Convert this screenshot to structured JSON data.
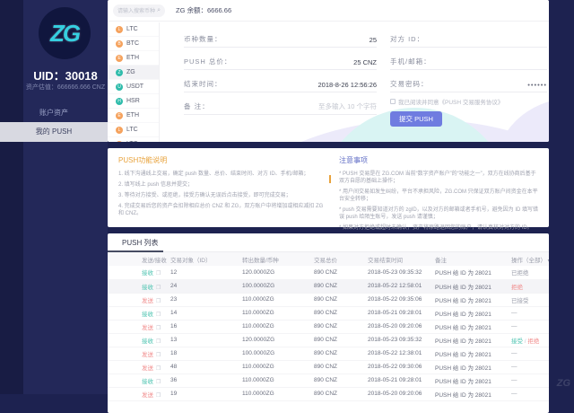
{
  "sidebar": {
    "logo_text": "ZG",
    "uid": "UID：30018",
    "asset": "资产估值：666666.666 CNZ",
    "menu": [
      {
        "key": "account-assets",
        "label": "账户资产",
        "active": false
      },
      {
        "key": "my-push",
        "label": "我的 PUSH",
        "active": true
      }
    ]
  },
  "topbar": {
    "search_placeholder": "请输入搜索币种",
    "search_icon": "⌕",
    "balance": "ZG 余额：6666.66"
  },
  "coins": [
    {
      "symbol": "LTC",
      "color": "orange",
      "active": false
    },
    {
      "symbol": "BTC",
      "color": "orange",
      "active": false
    },
    {
      "symbol": "ETH",
      "color": "orange",
      "active": false
    },
    {
      "symbol": "ZG",
      "color": "teal",
      "active": true
    },
    {
      "symbol": "USDT",
      "color": "teal",
      "active": false
    },
    {
      "symbol": "HSR",
      "color": "teal",
      "active": false
    },
    {
      "symbol": "ETH",
      "color": "orange",
      "active": false
    },
    {
      "symbol": "LTC",
      "color": "orange",
      "active": false
    },
    {
      "symbol": "LTC",
      "color": "orange",
      "active": false
    }
  ],
  "form": {
    "left": [
      {
        "key": "coin-amount",
        "label": "币种数量：",
        "value": "25"
      },
      {
        "key": "push-total",
        "label": "PUSH 总价：",
        "value": "25  CNZ"
      },
      {
        "key": "end-time",
        "label": "结束时间：",
        "value": "2018-8-26 12:56:26"
      },
      {
        "key": "remark",
        "label": "备  注：",
        "placeholder": "至多输入 10 个字符"
      }
    ],
    "right": [
      {
        "key": "counterparty-id",
        "label": "对方 ID：",
        "value": ""
      },
      {
        "key": "phone-email",
        "label": "手机/邮箱：",
        "value": ""
      },
      {
        "key": "trade-password",
        "label": "交易密码：",
        "value": "••••••",
        "masked": true
      }
    ],
    "agreement": "我已阅读并同意《PUSH 交易服务协议》",
    "submit": "提交 PUSH"
  },
  "info": {
    "left_title": "PUSH功能说明",
    "left_items": [
      "1. 线下沟通线上交易，确定 push 数量、总价、结束时间、对方 ID、手机/邮箱；",
      "2. 填写线上 push 信息并提交；",
      "3. 等待对方接受、或拒绝，接受方确认无误后点击接受，即可完成交易；",
      "4. 完成交易后您的资产会扣除相应总价 CNZ 和 ZG，双方账户中将增加或相应减扣 ZG 和 CNZ。"
    ],
    "right_title": "注意事项",
    "right_items": [
      "* PUSH 交易是在 ZG.COM 当前“数字资产账户”的“功能之一”，双方在线协商后基于双方自愿的基础上操作；",
      "* 用户间交易如发生纠纷，平台不承担风险，ZG.COM 只保证双方账户间资金在本平台安全转移；",
      "* push 交易需要知道对方的 zgID，以及对方的邮箱或者手机号，避免因为 ID 填写错误 push 给陌生账号，发送 push 请谨慎；",
      "* 如果对方拒绝或超时未确认，资产将原路退回您的账户，请认真核对对方的 ID。"
    ]
  },
  "table": {
    "tab": "PUSH 列表",
    "headers": [
      "发送/接收",
      "交易对象（ID）",
      "转出数量/币种",
      "交易总价",
      "交易结束时间",
      "备注",
      "操作（全部）"
    ],
    "sort_caret": "▾",
    "copy_icon": "❐",
    "rows": [
      {
        "dir": "接收",
        "dir_type": "recv",
        "id": "12",
        "amount": "120.0000ZG",
        "total": "890 CNZ",
        "time": "2018-05-23 09:35:32",
        "note": "PUSH 给 ID 为 28021",
        "action": "已拒绝",
        "action_type": "plain",
        "highlight": false
      },
      {
        "dir": "接收",
        "dir_type": "recv",
        "id": "24",
        "amount": "100.0000ZG",
        "total": "890 CNZ",
        "time": "2018-05-22 12:58:01",
        "note": "PUSH 给 ID 为 28021",
        "action": "拒绝",
        "action_type": "reject",
        "highlight": true
      },
      {
        "dir": "发送",
        "dir_type": "send",
        "id": "23",
        "amount": "110.0000ZG",
        "total": "890 CNZ",
        "time": "2018-05-22 09:35:06",
        "note": "PUSH 给 ID 为 28021",
        "action": "已接受",
        "action_type": "plain",
        "highlight": false
      },
      {
        "dir": "接收",
        "dir_type": "recv",
        "id": "14",
        "amount": "110.0000ZG",
        "total": "890 CNZ",
        "time": "2018-05-21 09:28:01",
        "note": "PUSH 给 ID 为 28021",
        "action": "—",
        "action_type": "plain",
        "highlight": false
      },
      {
        "dir": "发送",
        "dir_type": "send",
        "id": "16",
        "amount": "110.0000ZG",
        "total": "890 CNZ",
        "time": "2018-05-20 09:20:06",
        "note": "PUSH 给 ID 为 28021",
        "action": "—",
        "action_type": "plain",
        "highlight": false
      },
      {
        "dir": "接收",
        "dir_type": "recv",
        "id": "13",
        "amount": "120.0000ZG",
        "total": "890 CNZ",
        "time": "2018-05-23 09:35:32",
        "note": "PUSH 给 ID 为 28021",
        "action_type": "both",
        "action_accept": "接受",
        "action_reject": "拒绝",
        "highlight": false
      },
      {
        "dir": "发送",
        "dir_type": "send",
        "id": "18",
        "amount": "100.0000ZG",
        "total": "890 CNZ",
        "time": "2018-05-22 12:38:01",
        "note": "PUSH 给 ID 为 28021",
        "action": "—",
        "action_type": "plain",
        "highlight": false
      },
      {
        "dir": "发送",
        "dir_type": "send",
        "id": "48",
        "amount": "110.0000ZG",
        "total": "890 CNZ",
        "time": "2018-05-22 09:30:06",
        "note": "PUSH 给 ID 为 28021",
        "action": "—",
        "action_type": "plain",
        "highlight": false
      },
      {
        "dir": "接收",
        "dir_type": "recv",
        "id": "36",
        "amount": "110.0000ZG",
        "total": "890 CNZ",
        "time": "2018-05-21 09:28:01",
        "note": "PUSH 给 ID 为 28021",
        "action": "—",
        "action_type": "plain",
        "highlight": false
      },
      {
        "dir": "发送",
        "dir_type": "send",
        "id": "19",
        "amount": "110.0000ZG",
        "total": "890 CNZ",
        "time": "2018-05-20 09:20:06",
        "note": "PUSH 给 ID 为 28021",
        "action": "—",
        "action_type": "plain",
        "highlight": false
      }
    ]
  },
  "watermark": "ZG",
  "colors": {
    "accent": "#6f7ce0",
    "recv": "#4cc3b0",
    "send": "#f08a8a",
    "navy": "#1d2250",
    "orange": "#e8a33d",
    "indigo": "#5f6cc5"
  }
}
